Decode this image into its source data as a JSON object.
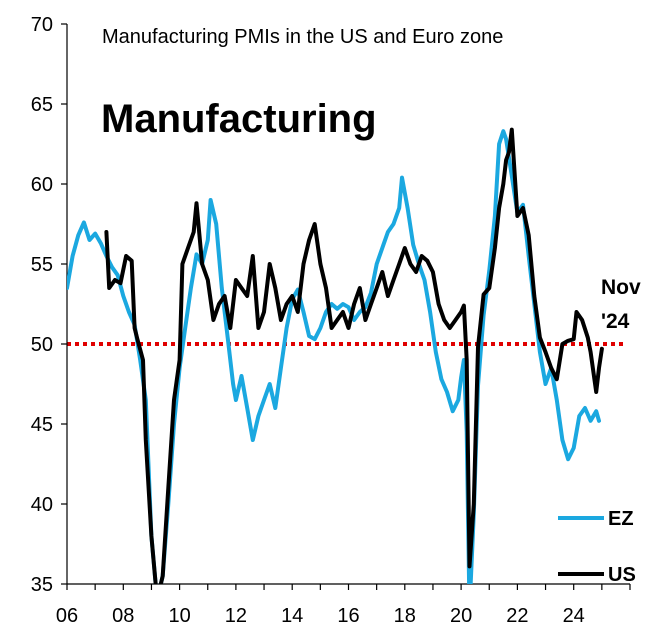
{
  "chart_data": {
    "type": "line",
    "subtitle": "Manufacturing PMIs in the US and Euro zone",
    "title": "Manufacturing",
    "xlim": [
      2006,
      2026
    ],
    "ylim": [
      35,
      70
    ],
    "x_tick_labels": [
      "06",
      "08",
      "10",
      "12",
      "14",
      "16",
      "18",
      "20",
      "22",
      "24"
    ],
    "y_tick_labels": [
      "35",
      "40",
      "45",
      "50",
      "55",
      "60",
      "65",
      "70"
    ],
    "reference_line": {
      "y": 50,
      "color": "#e00000",
      "style": "dotted"
    },
    "annotation": [
      "Nov",
      "'24"
    ],
    "legend_position": "bottom-right",
    "series": [
      {
        "name": "EZ",
        "color": "#1ba8e0",
        "points": [
          [
            2006.0,
            53.5
          ],
          [
            2006.2,
            55.5
          ],
          [
            2006.4,
            56.8
          ],
          [
            2006.6,
            57.6
          ],
          [
            2006.8,
            56.5
          ],
          [
            2007.0,
            56.9
          ],
          [
            2007.2,
            56.3
          ],
          [
            2007.4,
            55.5
          ],
          [
            2007.6,
            54.8
          ],
          [
            2007.8,
            54.3
          ],
          [
            2008.0,
            53.0
          ],
          [
            2008.2,
            52.0
          ],
          [
            2008.4,
            51.2
          ],
          [
            2008.6,
            49.0
          ],
          [
            2008.8,
            46.5
          ],
          [
            2009.0,
            38.0
          ],
          [
            2009.2,
            34.0
          ],
          [
            2009.4,
            35.5
          ],
          [
            2009.6,
            40.0
          ],
          [
            2009.8,
            45.0
          ],
          [
            2010.0,
            48.5
          ],
          [
            2010.2,
            51.0
          ],
          [
            2010.4,
            53.5
          ],
          [
            2010.6,
            55.6
          ],
          [
            2010.8,
            55.0
          ],
          [
            2011.0,
            56.5
          ],
          [
            2011.1,
            59.0
          ],
          [
            2011.3,
            57.5
          ],
          [
            2011.5,
            53.5
          ],
          [
            2011.7,
            50.5
          ],
          [
            2011.9,
            47.5
          ],
          [
            2012.0,
            46.5
          ],
          [
            2012.2,
            48.0
          ],
          [
            2012.4,
            46.0
          ],
          [
            2012.6,
            44.0
          ],
          [
            2012.8,
            45.5
          ],
          [
            2013.0,
            46.5
          ],
          [
            2013.2,
            47.5
          ],
          [
            2013.4,
            46.0
          ],
          [
            2013.6,
            48.5
          ],
          [
            2013.8,
            51.0
          ],
          [
            2014.0,
            52.8
          ],
          [
            2014.2,
            53.4
          ],
          [
            2014.4,
            52.0
          ],
          [
            2014.6,
            50.5
          ],
          [
            2014.8,
            50.3
          ],
          [
            2015.0,
            51.0
          ],
          [
            2015.2,
            52.0
          ],
          [
            2015.4,
            52.5
          ],
          [
            2015.6,
            52.2
          ],
          [
            2015.8,
            52.5
          ],
          [
            2016.0,
            52.3
          ],
          [
            2016.2,
            51.5
          ],
          [
            2016.4,
            52.0
          ],
          [
            2016.6,
            52.3
          ],
          [
            2016.8,
            53.2
          ],
          [
            2017.0,
            55.0
          ],
          [
            2017.2,
            56.0
          ],
          [
            2017.4,
            57.0
          ],
          [
            2017.6,
            57.5
          ],
          [
            2017.8,
            58.5
          ],
          [
            2017.9,
            60.4
          ],
          [
            2018.1,
            58.5
          ],
          [
            2018.3,
            56.2
          ],
          [
            2018.5,
            55.0
          ],
          [
            2018.7,
            54.0
          ],
          [
            2018.9,
            52.0
          ],
          [
            2019.1,
            49.5
          ],
          [
            2019.3,
            47.8
          ],
          [
            2019.5,
            47.0
          ],
          [
            2019.7,
            45.8
          ],
          [
            2019.9,
            46.5
          ],
          [
            2020.0,
            47.9
          ],
          [
            2020.1,
            49.0
          ],
          [
            2020.2,
            44.5
          ],
          [
            2020.3,
            33.4
          ],
          [
            2020.45,
            39.4
          ],
          [
            2020.6,
            47.4
          ],
          [
            2020.8,
            51.8
          ],
          [
            2021.0,
            54.6
          ],
          [
            2021.2,
            58.0
          ],
          [
            2021.35,
            62.5
          ],
          [
            2021.5,
            63.3
          ],
          [
            2021.6,
            62.8
          ],
          [
            2021.8,
            60.5
          ],
          [
            2022.0,
            58.2
          ],
          [
            2022.2,
            58.7
          ],
          [
            2022.4,
            55.5
          ],
          [
            2022.6,
            52.5
          ],
          [
            2022.8,
            49.5
          ],
          [
            2023.0,
            47.5
          ],
          [
            2023.2,
            48.5
          ],
          [
            2023.4,
            46.5
          ],
          [
            2023.6,
            44.0
          ],
          [
            2023.8,
            42.8
          ],
          [
            2024.0,
            43.5
          ],
          [
            2024.2,
            45.5
          ],
          [
            2024.4,
            46.0
          ],
          [
            2024.6,
            45.2
          ],
          [
            2024.8,
            45.8
          ],
          [
            2024.9,
            45.2
          ]
        ]
      },
      {
        "name": "US",
        "color": "#000000",
        "points": [
          [
            2007.4,
            57.0
          ],
          [
            2007.5,
            53.5
          ],
          [
            2007.7,
            54.0
          ],
          [
            2007.9,
            53.8
          ],
          [
            2008.1,
            55.5
          ],
          [
            2008.3,
            55.2
          ],
          [
            2008.4,
            51.0
          ],
          [
            2008.5,
            50.3
          ],
          [
            2008.7,
            49.0
          ],
          [
            2008.8,
            44.0
          ],
          [
            2009.0,
            38.0
          ],
          [
            2009.2,
            34.0
          ],
          [
            2009.4,
            35.5
          ],
          [
            2009.6,
            41.0
          ],
          [
            2009.8,
            46.5
          ],
          [
            2010.0,
            49.0
          ],
          [
            2010.1,
            55.0
          ],
          [
            2010.3,
            56.0
          ],
          [
            2010.5,
            57.0
          ],
          [
            2010.6,
            58.8
          ],
          [
            2010.8,
            55.0
          ],
          [
            2011.0,
            54.0
          ],
          [
            2011.2,
            51.5
          ],
          [
            2011.4,
            52.5
          ],
          [
            2011.6,
            53.0
          ],
          [
            2011.8,
            51.0
          ],
          [
            2012.0,
            54.0
          ],
          [
            2012.2,
            53.5
          ],
          [
            2012.4,
            53.0
          ],
          [
            2012.6,
            55.5
          ],
          [
            2012.8,
            51.0
          ],
          [
            2013.0,
            52.0
          ],
          [
            2013.2,
            55.0
          ],
          [
            2013.4,
            53.5
          ],
          [
            2013.6,
            51.5
          ],
          [
            2013.8,
            52.5
          ],
          [
            2014.0,
            53.0
          ],
          [
            2014.2,
            52.0
          ],
          [
            2014.4,
            55.0
          ],
          [
            2014.6,
            56.5
          ],
          [
            2014.8,
            57.5
          ],
          [
            2015.0,
            55.0
          ],
          [
            2015.2,
            53.5
          ],
          [
            2015.4,
            51.0
          ],
          [
            2015.6,
            51.5
          ],
          [
            2015.8,
            52.0
          ],
          [
            2016.0,
            51.0
          ],
          [
            2016.2,
            52.5
          ],
          [
            2016.4,
            53.5
          ],
          [
            2016.6,
            51.5
          ],
          [
            2016.8,
            52.5
          ],
          [
            2017.0,
            53.5
          ],
          [
            2017.2,
            54.5
          ],
          [
            2017.4,
            53.0
          ],
          [
            2017.6,
            54.0
          ],
          [
            2017.8,
            55.0
          ],
          [
            2018.0,
            56.0
          ],
          [
            2018.2,
            55.0
          ],
          [
            2018.4,
            54.5
          ],
          [
            2018.6,
            55.5
          ],
          [
            2018.8,
            55.2
          ],
          [
            2019.0,
            54.5
          ],
          [
            2019.2,
            52.5
          ],
          [
            2019.4,
            51.5
          ],
          [
            2019.6,
            51.0
          ],
          [
            2019.8,
            51.5
          ],
          [
            2020.0,
            52.0
          ],
          [
            2020.1,
            52.4
          ],
          [
            2020.2,
            49.0
          ],
          [
            2020.3,
            36.1
          ],
          [
            2020.45,
            40.0
          ],
          [
            2020.6,
            49.8
          ],
          [
            2020.8,
            53.1
          ],
          [
            2021.0,
            53.5
          ],
          [
            2021.2,
            56.0
          ],
          [
            2021.35,
            58.5
          ],
          [
            2021.5,
            60.0
          ],
          [
            2021.6,
            61.5
          ],
          [
            2021.7,
            62.0
          ],
          [
            2021.8,
            63.4
          ],
          [
            2022.0,
            58.0
          ],
          [
            2022.2,
            58.5
          ],
          [
            2022.4,
            56.8
          ],
          [
            2022.6,
            53.0
          ],
          [
            2022.8,
            50.4
          ],
          [
            2023.0,
            49.5
          ],
          [
            2023.2,
            48.5
          ],
          [
            2023.4,
            47.8
          ],
          [
            2023.6,
            50.0
          ],
          [
            2023.8,
            50.2
          ],
          [
            2024.0,
            50.3
          ],
          [
            2024.1,
            52.0
          ],
          [
            2024.3,
            51.5
          ],
          [
            2024.5,
            50.4
          ],
          [
            2024.6,
            49.5
          ],
          [
            2024.8,
            47.0
          ],
          [
            2024.9,
            48.5
          ],
          [
            2025.0,
            49.7
          ]
        ]
      }
    ]
  }
}
